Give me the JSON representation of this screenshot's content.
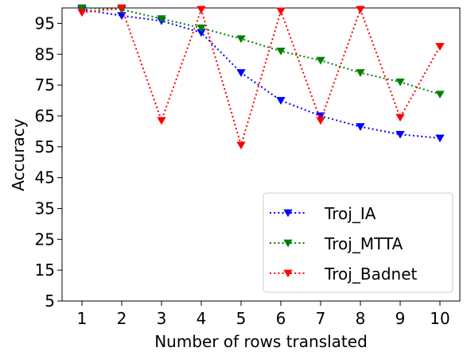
{
  "chart_data": {
    "type": "line",
    "title": "",
    "xlabel": "Number of rows translated",
    "ylabel": "Accuracy",
    "x": [
      1,
      2,
      3,
      4,
      5,
      6,
      7,
      8,
      9,
      10
    ],
    "xticks": [
      "1",
      "2",
      "3",
      "4",
      "5",
      "6",
      "7",
      "8",
      "9",
      "10"
    ],
    "yticks": [
      "5",
      "15",
      "25",
      "35",
      "45",
      "55",
      "65",
      "75",
      "85",
      "95"
    ],
    "xlim": [
      0.5,
      10.5
    ],
    "ylim": [
      5,
      100
    ],
    "grid": false,
    "legend_position": "lower-right",
    "series": [
      {
        "name": "Troj_IA",
        "color": "#0000ff",
        "linestyle": "dotted",
        "marker": "triangle-down",
        "values": [
          99.5,
          97.5,
          95.8,
          92,
          79,
          70,
          65,
          61.5,
          59,
          57.8
        ]
      },
      {
        "name": "Troj_MTTA",
        "color": "#008000",
        "linestyle": "dotted",
        "marker": "triangle-down",
        "values": [
          100,
          99.5,
          96.5,
          93.5,
          90,
          86,
          83,
          79,
          76,
          72
        ]
      },
      {
        "name": "Troj_Badnet",
        "color": "#ff0000",
        "linestyle": "dotted",
        "marker": "triangle-down",
        "values": [
          98.5,
          100,
          63.5,
          99.5,
          55.5,
          99,
          63.5,
          99.5,
          64.5,
          87.5
        ]
      }
    ]
  }
}
